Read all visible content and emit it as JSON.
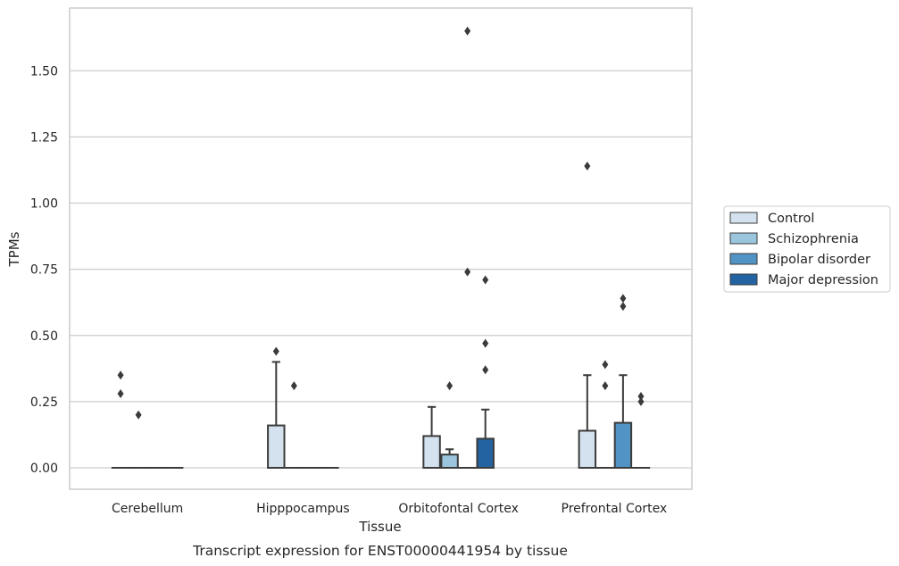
{
  "chart_data": {
    "type": "box",
    "title": "",
    "caption": "Transcript expression for ENST00000441954 by tissue",
    "xlabel": "Tissue",
    "ylabel": "TPMs",
    "ylim": [
      -0.08,
      1.74
    ],
    "yticks": [
      "0.00",
      "0.25",
      "0.50",
      "0.75",
      "1.00",
      "1.25",
      "1.50"
    ],
    "grid": true,
    "legend_position": "right",
    "categories": [
      "Cerebellum",
      "Hipppocampus",
      "Orbitofontal Cortex",
      "Prefrontal Cortex"
    ],
    "series": [
      {
        "name": "Control",
        "color": "#d4e2ef",
        "boxes": [
          {
            "q1": 0,
            "median": 0,
            "q3": 0,
            "whisker_low": 0,
            "whisker_high": 0,
            "outliers": [
              0.35,
              0.28
            ]
          },
          {
            "q1": 0,
            "median": 0,
            "q3": 0.16,
            "whisker_low": 0,
            "whisker_high": 0.4,
            "outliers": [
              0.44
            ]
          },
          {
            "q1": 0,
            "median": 0,
            "q3": 0.12,
            "whisker_low": 0,
            "whisker_high": 0.23,
            "outliers": []
          },
          {
            "q1": 0,
            "median": 0,
            "q3": 0.14,
            "whisker_low": 0,
            "whisker_high": 0.35,
            "outliers": [
              1.14
            ]
          }
        ]
      },
      {
        "name": "Schizophrenia",
        "color": "#9ac5dd",
        "boxes": [
          {
            "q1": 0,
            "median": 0,
            "q3": 0,
            "whisker_low": 0,
            "whisker_high": 0,
            "outliers": [
              0.2
            ]
          },
          {
            "q1": 0,
            "median": 0,
            "q3": 0,
            "whisker_low": 0,
            "whisker_high": 0,
            "outliers": [
              0.31
            ]
          },
          {
            "q1": 0,
            "median": 0,
            "q3": 0.05,
            "whisker_low": 0,
            "whisker_high": 0.07,
            "outliers": [
              0.31
            ]
          },
          {
            "q1": 0,
            "median": 0,
            "q3": 0,
            "whisker_low": 0,
            "whisker_high": 0,
            "outliers": [
              0.39,
              0.31
            ]
          }
        ]
      },
      {
        "name": "Bipolar disorder",
        "color": "#5193c4",
        "boxes": [
          {
            "q1": 0,
            "median": 0,
            "q3": 0,
            "whisker_low": 0,
            "whisker_high": 0,
            "outliers": []
          },
          {
            "q1": 0,
            "median": 0,
            "q3": 0,
            "whisker_low": 0,
            "whisker_high": 0,
            "outliers": []
          },
          {
            "q1": 0,
            "median": 0,
            "q3": 0,
            "whisker_low": 0,
            "whisker_high": 0,
            "outliers": [
              1.65,
              0.74
            ]
          },
          {
            "q1": 0,
            "median": 0,
            "q3": 0.17,
            "whisker_low": 0,
            "whisker_high": 0.35,
            "outliers": [
              0.64,
              0.61
            ]
          }
        ]
      },
      {
        "name": "Major depression",
        "color": "#2363a2",
        "boxes": [
          {
            "q1": 0,
            "median": 0,
            "q3": 0,
            "whisker_low": 0,
            "whisker_high": 0,
            "outliers": []
          },
          {
            "q1": 0,
            "median": 0,
            "q3": 0,
            "whisker_low": 0,
            "whisker_high": 0,
            "outliers": []
          },
          {
            "q1": 0,
            "median": 0,
            "q3": 0.11,
            "whisker_low": 0,
            "whisker_high": 0.22,
            "outliers": [
              0.71,
              0.47,
              0.37
            ]
          },
          {
            "q1": 0,
            "median": 0,
            "q3": 0,
            "whisker_low": 0,
            "whisker_high": 0,
            "outliers": [
              0.27,
              0.25
            ]
          }
        ]
      }
    ]
  }
}
